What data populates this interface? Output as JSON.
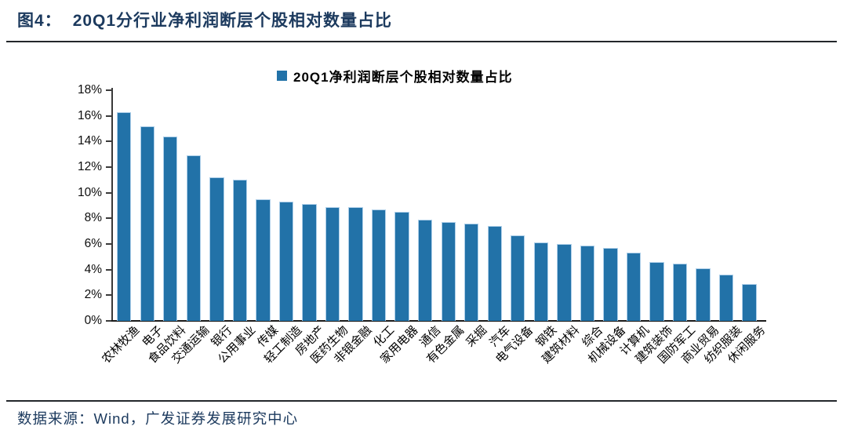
{
  "header": {
    "figure_label": "图4：",
    "title": "20Q1分行业净利润断层个股相对数量占比"
  },
  "footer": {
    "source": "数据来源：Wind，广发证券发展研究中心"
  },
  "colors": {
    "accent": "#2272A8",
    "bar_border": "#AECFE9",
    "title_navy": "#1C3A5E",
    "axis": "#3A3A3A"
  },
  "chart_data": {
    "type": "bar",
    "title": "",
    "legend_position": "top-center",
    "grid": false,
    "ylim": [
      0,
      18
    ],
    "ytick_step": 2,
    "ytick_suffix": "%",
    "xlabel": "",
    "ylabel": "",
    "xtick_rotation": -45,
    "categories": [
      "农林牧渔",
      "电子",
      "食品饮料",
      "交通运输",
      "银行",
      "公用事业",
      "传媒",
      "轻工制造",
      "房地产",
      "医药生物",
      "非银金融",
      "化工",
      "家用电器",
      "通信",
      "有色金属",
      "采掘",
      "汽车",
      "电气设备",
      "钢铁",
      "建筑材料",
      "综合",
      "机械设备",
      "计算机",
      "建筑装饰",
      "国防军工",
      "商业贸易",
      "纺织服装",
      "休闲服务"
    ],
    "series": [
      {
        "name": "20Q1净利润断层个股相对数量占比",
        "values": [
          16.3,
          15.2,
          14.4,
          12.9,
          11.2,
          11.0,
          9.5,
          9.3,
          9.1,
          8.9,
          8.9,
          8.7,
          8.5,
          7.9,
          7.7,
          7.6,
          7.4,
          6.7,
          6.1,
          6.0,
          5.9,
          5.7,
          5.3,
          4.6,
          4.5,
          4.1,
          3.6,
          2.9
        ]
      }
    ]
  }
}
